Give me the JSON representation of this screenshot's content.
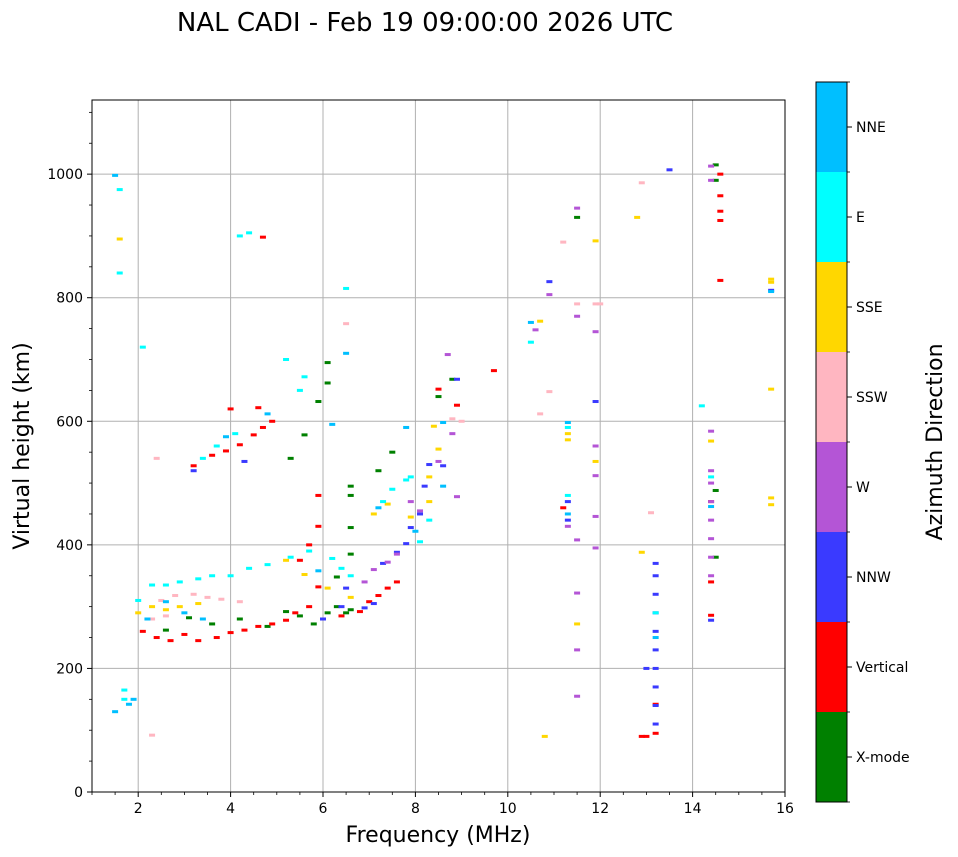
{
  "chart_data": {
    "type": "scatter",
    "title": "NAL CADI - Feb 19 09:00:00 2026 UTC",
    "xlabel": "Frequency (MHz)",
    "ylabel": "Virtual height (km)",
    "xlim": [
      1,
      16
    ],
    "ylim": [
      0,
      1120
    ],
    "xticks": [
      2,
      4,
      6,
      8,
      10,
      12,
      14,
      16
    ],
    "yticks": [
      0,
      200,
      400,
      600,
      800,
      1000
    ],
    "grid": true,
    "colorbar": {
      "title": "Azimuth Direction",
      "categories": [
        {
          "name": "X-mode",
          "color": "#008000"
        },
        {
          "name": "Vertical",
          "color": "#ff0000"
        },
        {
          "name": "NNW",
          "color": "#3a3aff"
        },
        {
          "name": "W",
          "color": "#b455d6"
        },
        {
          "name": "SSW",
          "color": "#ffb6c1"
        },
        {
          "name": "SSE",
          "color": "#ffd700"
        },
        {
          "name": "E",
          "color": "#00ffff"
        },
        {
          "name": "NNE",
          "color": "#00bfff"
        }
      ]
    },
    "series": [
      {
        "name": "X-mode",
        "points": [
          [
            2.6,
            262
          ],
          [
            3.1,
            282
          ],
          [
            3.6,
            272
          ],
          [
            4.2,
            280
          ],
          [
            4.8,
            268
          ],
          [
            5.2,
            292
          ],
          [
            5.5,
            285
          ],
          [
            5.8,
            272
          ],
          [
            6.1,
            290
          ],
          [
            6.3,
            300
          ],
          [
            6.5,
            290
          ],
          [
            6.6,
            295
          ],
          [
            5.3,
            540
          ],
          [
            5.6,
            578
          ],
          [
            5.9,
            632
          ],
          [
            6.1,
            662
          ],
          [
            6.1,
            695
          ],
          [
            6.3,
            348
          ],
          [
            6.6,
            385
          ],
          [
            6.6,
            428
          ],
          [
            6.6,
            480
          ],
          [
            6.6,
            495
          ],
          [
            7.2,
            520
          ],
          [
            7.5,
            550
          ],
          [
            8.5,
            640
          ],
          [
            8.8,
            668
          ],
          [
            11.5,
            930
          ],
          [
            14.5,
            1015
          ],
          [
            14.5,
            990
          ],
          [
            14.5,
            380
          ],
          [
            14.5,
            488
          ]
        ]
      },
      {
        "name": "Vertical",
        "points": [
          [
            2.1,
            260
          ],
          [
            2.4,
            250
          ],
          [
            2.7,
            245
          ],
          [
            3.0,
            255
          ],
          [
            3.3,
            245
          ],
          [
            3.7,
            250
          ],
          [
            4.0,
            258
          ],
          [
            4.3,
            262
          ],
          [
            4.6,
            268
          ],
          [
            4.9,
            272
          ],
          [
            5.2,
            278
          ],
          [
            5.4,
            290
          ],
          [
            5.7,
            300
          ],
          [
            5.9,
            332
          ],
          [
            6.4,
            285
          ],
          [
            6.8,
            292
          ],
          [
            7.0,
            308
          ],
          [
            7.2,
            318
          ],
          [
            7.4,
            330
          ],
          [
            7.6,
            340
          ],
          [
            3.6,
            545
          ],
          [
            3.9,
            552
          ],
          [
            4.2,
            562
          ],
          [
            4.5,
            578
          ],
          [
            4.7,
            590
          ],
          [
            4.9,
            600
          ],
          [
            3.2,
            528
          ],
          [
            5.5,
            375
          ],
          [
            5.7,
            400
          ],
          [
            5.9,
            430
          ],
          [
            5.9,
            480
          ],
          [
            4.0,
            620
          ],
          [
            4.6,
            622
          ],
          [
            4.7,
            898
          ],
          [
            8.5,
            652
          ],
          [
            9.7,
            682
          ],
          [
            8.9,
            626
          ],
          [
            13.2,
            95
          ],
          [
            13.2,
            142
          ],
          [
            13.0,
            90
          ],
          [
            12.9,
            90
          ],
          [
            14.6,
            1000
          ],
          [
            14.6,
            965
          ],
          [
            14.6,
            940
          ],
          [
            14.6,
            925
          ],
          [
            14.6,
            828
          ],
          [
            14.4,
            470
          ],
          [
            14.4,
            340
          ],
          [
            14.4,
            286
          ],
          [
            11.2,
            460
          ]
        ]
      },
      {
        "name": "NNW",
        "points": [
          [
            6.0,
            280
          ],
          [
            6.5,
            330
          ],
          [
            7.3,
            370
          ],
          [
            7.6,
            388
          ],
          [
            7.8,
            402
          ],
          [
            7.9,
            428
          ],
          [
            8.1,
            450
          ],
          [
            8.2,
            495
          ],
          [
            8.3,
            530
          ],
          [
            8.6,
            528
          ],
          [
            8.9,
            668
          ],
          [
            10.9,
            826
          ],
          [
            11.9,
            632
          ],
          [
            13.2,
            110
          ],
          [
            13.2,
            140
          ],
          [
            13.2,
            170
          ],
          [
            13.2,
            200
          ],
          [
            13.2,
            230
          ],
          [
            13.2,
            260
          ],
          [
            13.2,
            290
          ],
          [
            13.2,
            320
          ],
          [
            13.2,
            350
          ],
          [
            13.2,
            370
          ],
          [
            13.5,
            1007
          ],
          [
            14.4,
            278
          ],
          [
            15.7,
            812
          ],
          [
            11.3,
            470
          ],
          [
            11.3,
            440
          ],
          [
            4.3,
            535
          ],
          [
            3.2,
            520
          ],
          [
            6.4,
            300
          ],
          [
            6.9,
            298
          ],
          [
            7.1,
            305
          ],
          [
            13.0,
            200
          ]
        ]
      },
      {
        "name": "W",
        "points": [
          [
            6.9,
            340
          ],
          [
            7.1,
            360
          ],
          [
            7.4,
            372
          ],
          [
            7.6,
            385
          ],
          [
            7.9,
            470
          ],
          [
            8.1,
            455
          ],
          [
            8.5,
            535
          ],
          [
            8.8,
            580
          ],
          [
            8.7,
            708
          ],
          [
            8.9,
            478
          ],
          [
            10.6,
            748
          ],
          [
            10.9,
            805
          ],
          [
            11.5,
            945
          ],
          [
            11.5,
            770
          ],
          [
            11.5,
            408
          ],
          [
            11.5,
            322
          ],
          [
            11.5,
            230
          ],
          [
            11.5,
            155
          ],
          [
            11.9,
            745
          ],
          [
            11.9,
            560
          ],
          [
            11.9,
            512
          ],
          [
            11.9,
            446
          ],
          [
            11.9,
            395
          ],
          [
            14.4,
            1013
          ],
          [
            14.4,
            990
          ],
          [
            14.4,
            584
          ],
          [
            14.4,
            520
          ],
          [
            14.4,
            500
          ],
          [
            14.4,
            470
          ],
          [
            14.4,
            440
          ],
          [
            14.4,
            410
          ],
          [
            14.4,
            380
          ],
          [
            14.4,
            350
          ],
          [
            11.3,
            430
          ]
        ]
      },
      {
        "name": "SSW",
        "points": [
          [
            2.5,
            310
          ],
          [
            2.8,
            318
          ],
          [
            3.2,
            320
          ],
          [
            3.5,
            315
          ],
          [
            3.8,
            312
          ],
          [
            4.2,
            308
          ],
          [
            2.3,
            280
          ],
          [
            2.6,
            285
          ],
          [
            2.4,
            540
          ],
          [
            6.5,
            758
          ],
          [
            8.8,
            604
          ],
          [
            9.0,
            600
          ],
          [
            10.7,
            612
          ],
          [
            11.2,
            890
          ],
          [
            10.9,
            648
          ],
          [
            11.5,
            790
          ],
          [
            11.9,
            790
          ],
          [
            12.9,
            986
          ],
          [
            13.1,
            452
          ],
          [
            12.0,
            790
          ],
          [
            2.3,
            92
          ]
        ]
      },
      {
        "name": "SSE",
        "points": [
          [
            1.6,
            895
          ],
          [
            2.0,
            290
          ],
          [
            2.3,
            300
          ],
          [
            2.6,
            295
          ],
          [
            2.9,
            300
          ],
          [
            3.3,
            305
          ],
          [
            5.2,
            375
          ],
          [
            5.6,
            352
          ],
          [
            6.1,
            330
          ],
          [
            6.6,
            315
          ],
          [
            7.1,
            450
          ],
          [
            7.4,
            466
          ],
          [
            7.9,
            445
          ],
          [
            8.3,
            470
          ],
          [
            8.3,
            510
          ],
          [
            8.4,
            592
          ],
          [
            8.5,
            555
          ],
          [
            10.7,
            762
          ],
          [
            10.8,
            90
          ],
          [
            11.3,
            570
          ],
          [
            11.3,
            580
          ],
          [
            11.9,
            892
          ],
          [
            11.9,
            535
          ],
          [
            11.5,
            272
          ],
          [
            12.8,
            930
          ],
          [
            12.9,
            388
          ],
          [
            14.4,
            568
          ],
          [
            15.7,
            830
          ],
          [
            15.7,
            825
          ],
          [
            15.7,
            652
          ],
          [
            15.7,
            476
          ],
          [
            15.7,
            465
          ]
        ]
      },
      {
        "name": "E",
        "points": [
          [
            1.6,
            975
          ],
          [
            1.6,
            840
          ],
          [
            1.7,
            150
          ],
          [
            1.7,
            165
          ],
          [
            2.0,
            310
          ],
          [
            2.3,
            335
          ],
          [
            2.6,
            335
          ],
          [
            2.9,
            340
          ],
          [
            3.3,
            345
          ],
          [
            3.6,
            350
          ],
          [
            4.0,
            350
          ],
          [
            4.4,
            362
          ],
          [
            4.8,
            368
          ],
          [
            5.3,
            380
          ],
          [
            5.7,
            390
          ],
          [
            6.2,
            378
          ],
          [
            6.4,
            362
          ],
          [
            6.6,
            350
          ],
          [
            3.4,
            540
          ],
          [
            3.7,
            560
          ],
          [
            4.1,
            580
          ],
          [
            4.2,
            900
          ],
          [
            4.4,
            905
          ],
          [
            5.2,
            700
          ],
          [
            5.6,
            672
          ],
          [
            6.5,
            815
          ],
          [
            5.5,
            650
          ],
          [
            7.3,
            470
          ],
          [
            7.5,
            490
          ],
          [
            7.8,
            505
          ],
          [
            7.9,
            510
          ],
          [
            8.1,
            405
          ],
          [
            8.3,
            440
          ],
          [
            10.5,
            728
          ],
          [
            11.3,
            590
          ],
          [
            11.3,
            480
          ],
          [
            13.2,
            290
          ],
          [
            14.2,
            625
          ],
          [
            14.4,
            510
          ],
          [
            2.1,
            720
          ]
        ]
      },
      {
        "name": "NNE",
        "points": [
          [
            1.5,
            998
          ],
          [
            1.5,
            130
          ],
          [
            1.8,
            142
          ],
          [
            1.9,
            150
          ],
          [
            2.2,
            280
          ],
          [
            2.6,
            308
          ],
          [
            3.0,
            290
          ],
          [
            3.4,
            280
          ],
          [
            3.9,
            575
          ],
          [
            4.8,
            612
          ],
          [
            5.9,
            358
          ],
          [
            6.2,
            595
          ],
          [
            6.5,
            710
          ],
          [
            7.2,
            460
          ],
          [
            7.8,
            590
          ],
          [
            8.0,
            422
          ],
          [
            8.6,
            598
          ],
          [
            8.6,
            495
          ],
          [
            10.5,
            760
          ],
          [
            11.3,
            598
          ],
          [
            11.3,
            450
          ],
          [
            13.2,
            250
          ],
          [
            14.4,
            462
          ],
          [
            15.7,
            810
          ]
        ]
      }
    ]
  }
}
